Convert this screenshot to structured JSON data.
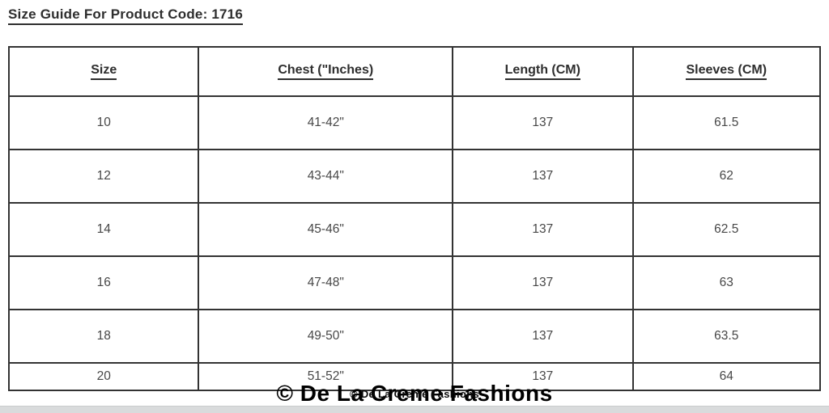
{
  "page": {
    "title": "Size Guide For Product Code: 1716"
  },
  "table": {
    "headers": [
      "Size",
      "Chest (\"Inches)",
      "Length (CM)",
      "Sleeves (CM)"
    ],
    "rows": [
      [
        "10",
        "41-42\"",
        "137",
        "61.5"
      ],
      [
        "12",
        "43-44\"",
        "137",
        "62"
      ],
      [
        "14",
        "45-46\"",
        "137",
        "62.5"
      ],
      [
        "16",
        "47-48\"",
        "137",
        "63"
      ],
      [
        "18",
        "49-50\"",
        "137",
        "63.5"
      ],
      [
        "20",
        "51-52\"",
        "137",
        "64"
      ]
    ]
  },
  "watermark": {
    "text_large": "© De La Creme Fashions",
    "text_small": "© De La Creme Fashions"
  },
  "colors": {
    "title_text": "#2e2e2e",
    "cell_text": "#474747",
    "table_border": "#333333",
    "background": "#ffffff",
    "bottom_strip": "#d9dbdc",
    "watermark": "#000000"
  }
}
